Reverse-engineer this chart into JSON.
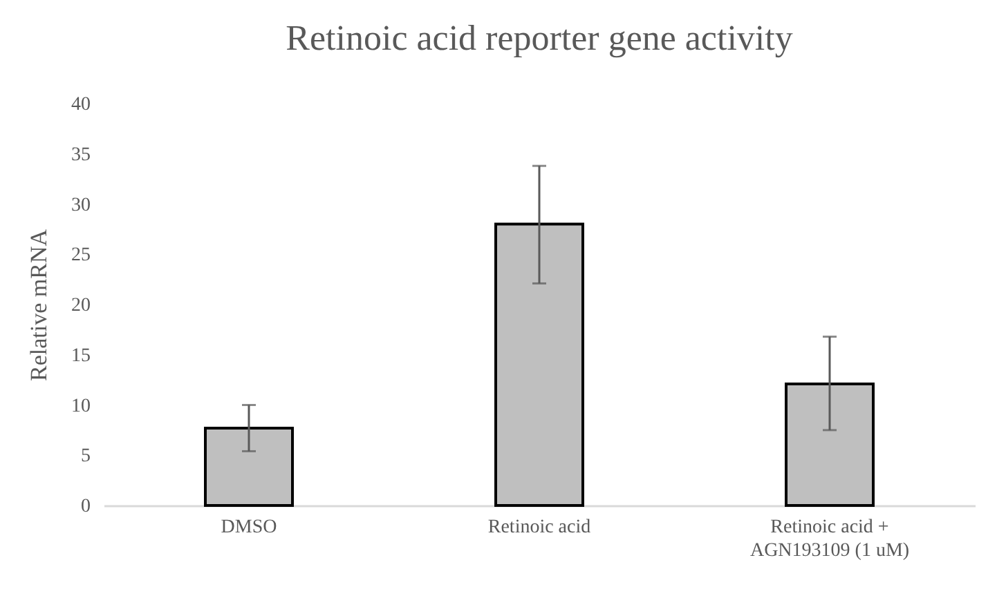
{
  "chart_data": {
    "type": "bar",
    "title": "Retinoic acid reporter gene activity",
    "ylabel": "Relative mRNA",
    "categories": [
      "DMSO",
      "Retinoic acid",
      "Retinoic acid + AGN193109 (1 uM)"
    ],
    "values": [
      7.7,
      28.0,
      12.1
    ],
    "color": "#bfbfbf",
    "errors": [
      [
        5.4,
        10.0
      ],
      [
        22.1,
        33.8
      ],
      [
        7.5,
        16.8
      ]
    ],
    "ylim": [
      0,
      40
    ],
    "yticks": [
      0,
      5,
      10,
      15,
      20,
      25,
      30,
      35,
      40
    ],
    "grid": false
  }
}
